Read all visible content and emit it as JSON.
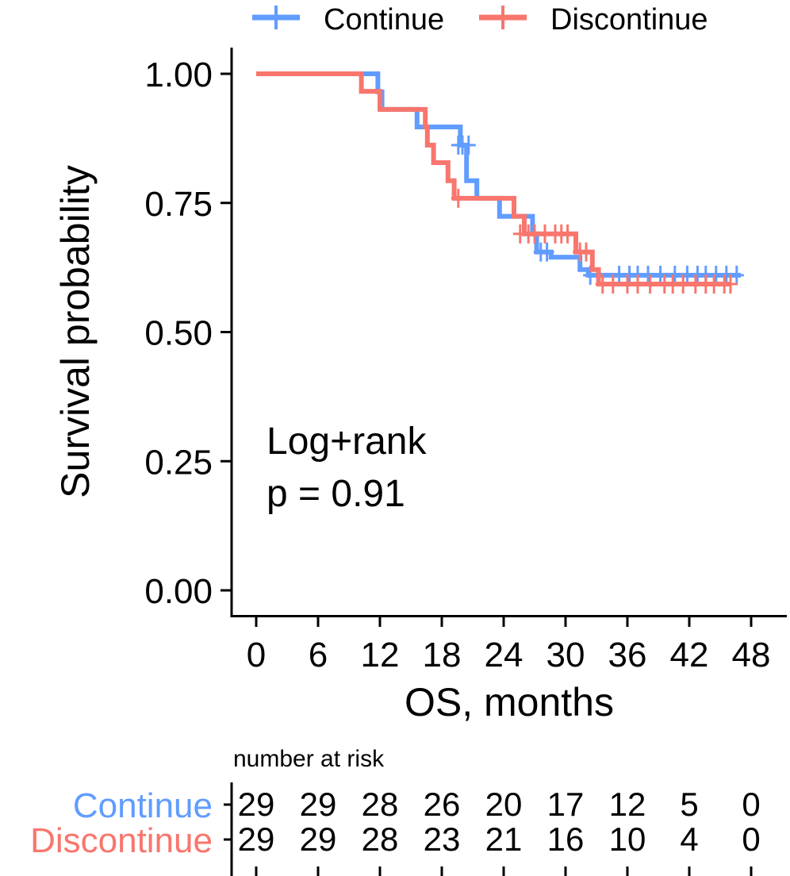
{
  "chart_data": {
    "type": "line",
    "subtype": "kaplan-meier",
    "xlabel": "OS, months",
    "ylabel": "Survival probability",
    "xlim": [
      0,
      48
    ],
    "ylim": [
      0,
      1
    ],
    "x_ticks": [
      0,
      6,
      12,
      18,
      24,
      30,
      36,
      42,
      48
    ],
    "x_tick_labels": [
      "0",
      "6",
      "12",
      "18",
      "24",
      "30",
      "36",
      "42",
      "48"
    ],
    "y_ticks": [
      0,
      0.25,
      0.5,
      0.75,
      1.0
    ],
    "y_tick_labels": [
      "0.00",
      "0.25",
      "0.50",
      "0.75",
      "1.00"
    ],
    "grid": false,
    "legend_position": "top",
    "annotation": {
      "line1": "Log+rank",
      "line2": "p = 0.91"
    },
    "series": [
      {
        "name": "Continue",
        "color": "#619CFF",
        "steps": [
          [
            0,
            1.0
          ],
          [
            11.8,
            0.965
          ],
          [
            12.2,
            0.931
          ],
          [
            15.6,
            0.897
          ],
          [
            19.8,
            0.862
          ],
          [
            20.4,
            0.793
          ],
          [
            21.4,
            0.759
          ],
          [
            23.6,
            0.724
          ],
          [
            26.8,
            0.69
          ],
          [
            27.2,
            0.655
          ],
          [
            28.6,
            0.645
          ],
          [
            31.4,
            0.621
          ],
          [
            32.2,
            0.61
          ]
        ],
        "end_x": 47.0,
        "censors": [
          [
            19.6,
            0.862
          ],
          [
            20.0,
            0.862
          ],
          [
            20.6,
            0.862
          ],
          [
            27.6,
            0.655
          ],
          [
            28.2,
            0.655
          ],
          [
            32.4,
            0.61
          ],
          [
            35.2,
            0.61
          ],
          [
            36.2,
            0.61
          ],
          [
            37.0,
            0.61
          ],
          [
            38.0,
            0.61
          ],
          [
            39.2,
            0.61
          ],
          [
            40.6,
            0.61
          ],
          [
            41.8,
            0.61
          ],
          [
            42.8,
            0.61
          ],
          [
            43.6,
            0.61
          ],
          [
            44.6,
            0.61
          ],
          [
            45.6,
            0.61
          ],
          [
            46.6,
            0.61
          ]
        ]
      },
      {
        "name": "Discontinue",
        "color": "#F8766D",
        "steps": [
          [
            0,
            1.0
          ],
          [
            10.2,
            0.966
          ],
          [
            12.0,
            0.931
          ],
          [
            16.4,
            0.897
          ],
          [
            16.6,
            0.862
          ],
          [
            17.2,
            0.828
          ],
          [
            18.6,
            0.793
          ],
          [
            19.2,
            0.759
          ],
          [
            25.0,
            0.724
          ],
          [
            26.0,
            0.69
          ],
          [
            31.0,
            0.655
          ],
          [
            32.6,
            0.621
          ],
          [
            33.2,
            0.593
          ]
        ],
        "end_x": 46.0,
        "censors": [
          [
            19.6,
            0.759
          ],
          [
            25.6,
            0.69
          ],
          [
            26.4,
            0.69
          ],
          [
            27.0,
            0.69
          ],
          [
            28.0,
            0.69
          ],
          [
            29.0,
            0.69
          ],
          [
            29.6,
            0.69
          ],
          [
            30.2,
            0.69
          ],
          [
            31.4,
            0.655
          ],
          [
            32.0,
            0.655
          ],
          [
            33.6,
            0.593
          ],
          [
            34.6,
            0.593
          ],
          [
            36.0,
            0.593
          ],
          [
            37.0,
            0.593
          ],
          [
            38.2,
            0.593
          ],
          [
            39.6,
            0.593
          ],
          [
            40.4,
            0.593
          ],
          [
            41.4,
            0.593
          ],
          [
            42.6,
            0.593
          ],
          [
            43.6,
            0.593
          ],
          [
            44.4,
            0.593
          ],
          [
            45.4,
            0.593
          ],
          [
            46.0,
            0.593
          ]
        ]
      }
    ],
    "risk_table": {
      "title": "number at risk",
      "rows": [
        {
          "label": "Continue",
          "color": "#619CFF",
          "values": [
            "29",
            "29",
            "28",
            "26",
            "20",
            "17",
            "12",
            "5",
            "0"
          ]
        },
        {
          "label": "Discontinue",
          "color": "#F8766D",
          "values": [
            "29",
            "29",
            "28",
            "23",
            "21",
            "16",
            "10",
            "4",
            "0"
          ]
        }
      ]
    }
  }
}
